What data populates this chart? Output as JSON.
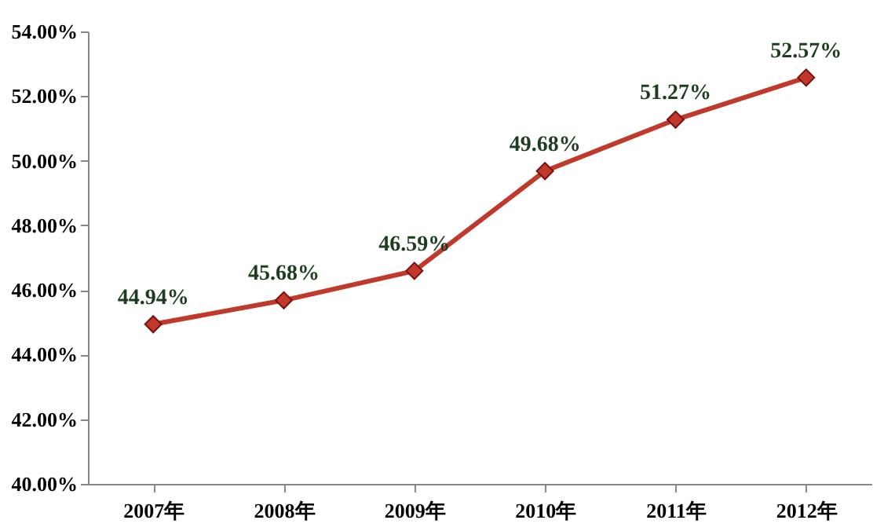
{
  "chart_data": {
    "type": "line",
    "categories": [
      "2007年",
      "2008年",
      "2009年",
      "2010年",
      "2011年",
      "2012年"
    ],
    "series": [
      {
        "color": "#c0392b",
        "values": [
          44.94,
          45.68,
          46.59,
          49.68,
          51.27,
          52.57
        ]
      }
    ],
    "value_labels": [
      "44.94%",
      "45.68%",
      "46.59%",
      "49.68%",
      "51.27%",
      "52.57%"
    ],
    "ylim": [
      40,
      54
    ],
    "yticks": [
      {
        "value": 40,
        "label": "40.00%"
      },
      {
        "value": 42,
        "label": "42.00%"
      },
      {
        "value": 44,
        "label": "44.00%"
      },
      {
        "value": 46,
        "label": "46.00%"
      },
      {
        "value": 48,
        "label": "48.00%"
      },
      {
        "value": 50,
        "label": "50.00%"
      },
      {
        "value": 52,
        "label": "52.00%"
      },
      {
        "value": 54,
        "label": "54.00%"
      }
    ],
    "marker": "diamond"
  }
}
